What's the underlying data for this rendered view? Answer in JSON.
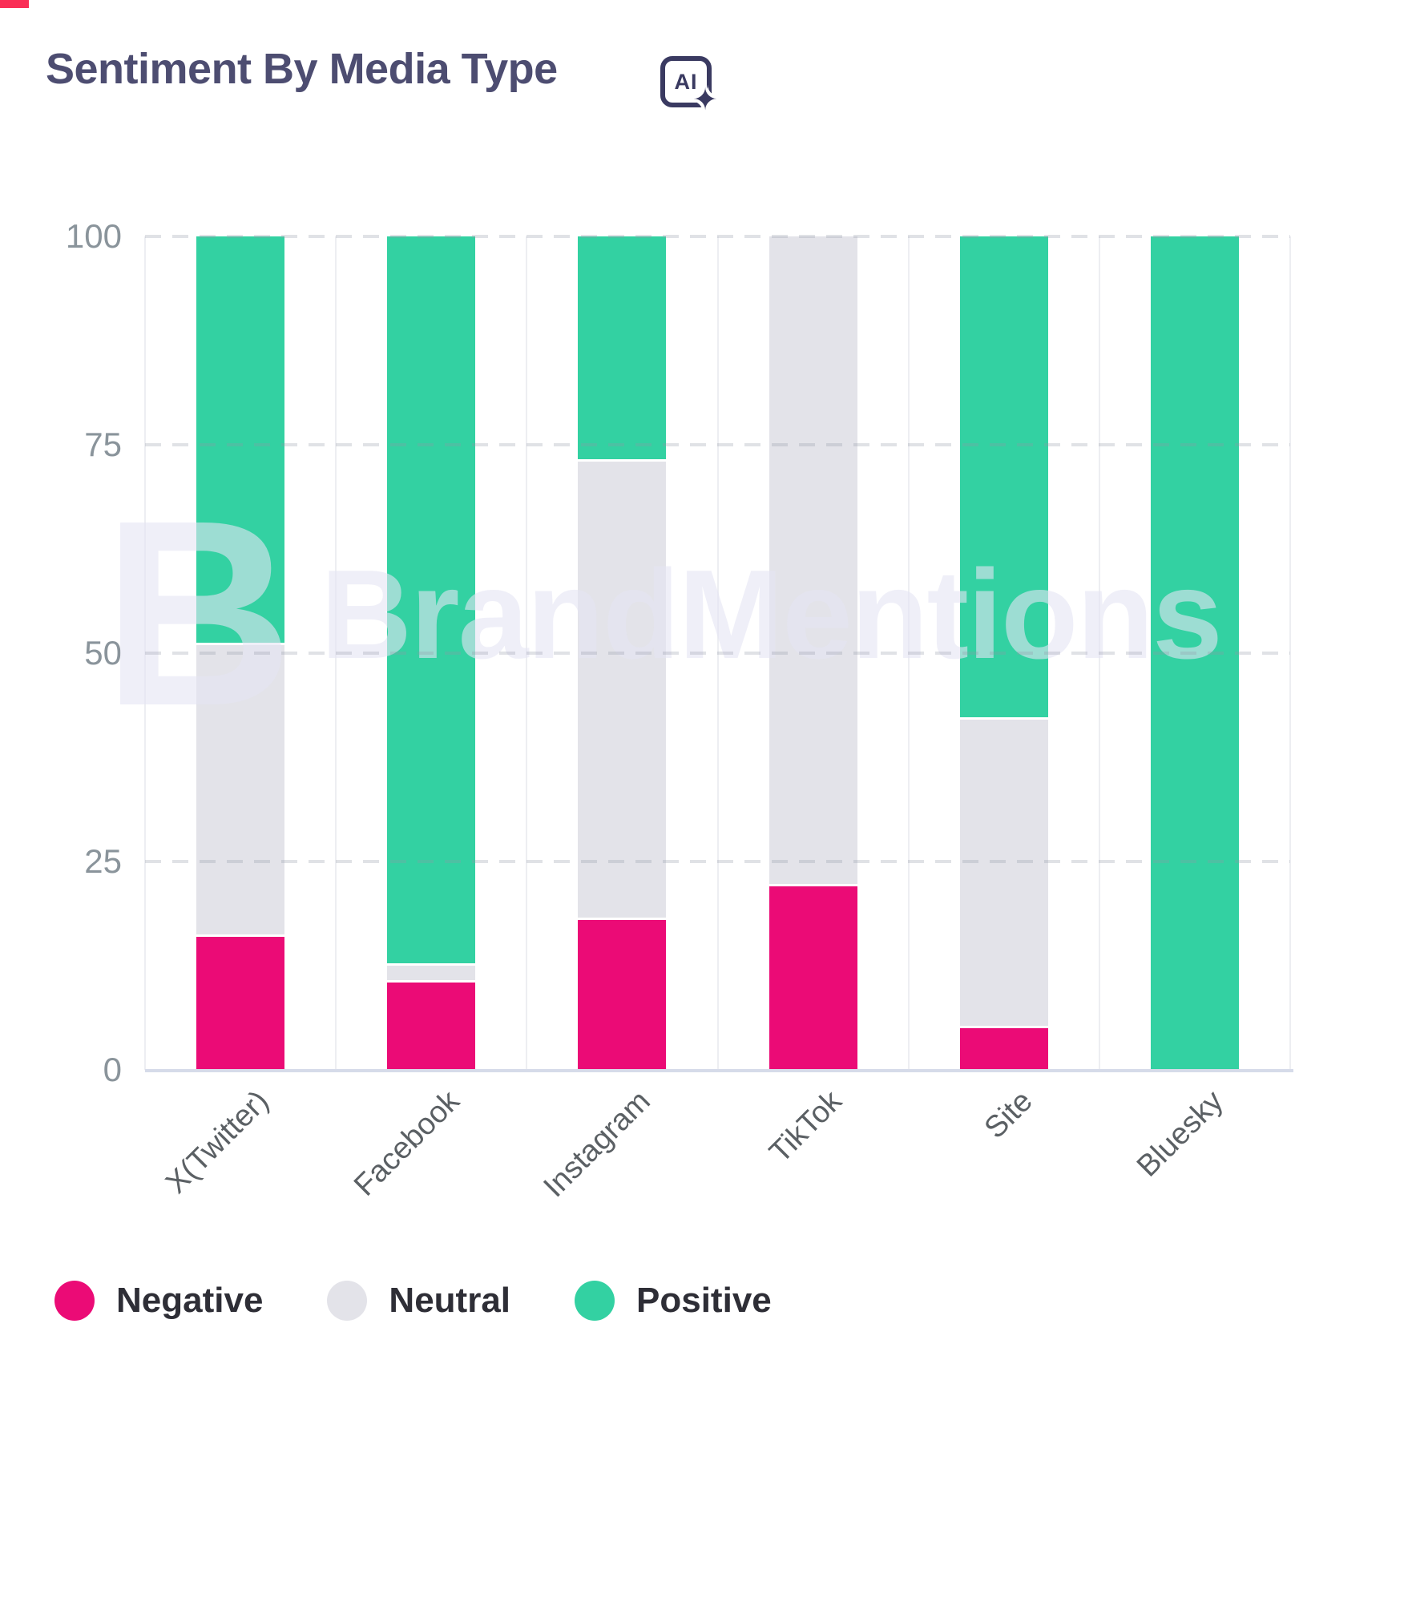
{
  "page": {
    "background": "#ffffff",
    "top_marker_color": "#fa2e56"
  },
  "header": {
    "title": "Sentiment By Media Type",
    "ai_icon_label": "AI",
    "ai_icon": "ai-sparkle-icon"
  },
  "chart_data": {
    "type": "bar",
    "subtype": "stacked-percentage-column",
    "title": "Sentiment By Media Type",
    "categories": [
      "X(Twitter)",
      "Facebook",
      "Instagram",
      "TikTok",
      "Site",
      "Bluesky"
    ],
    "series": [
      {
        "name": "Negative",
        "color": "#eb0b76",
        "values": [
          16,
          10.5,
          18,
          22,
          5,
          0
        ]
      },
      {
        "name": "Neutral",
        "color": "#e3e3e9",
        "values": [
          35,
          2,
          55,
          78,
          37,
          0
        ]
      },
      {
        "name": "Positive",
        "color": "#33d1a2",
        "values": [
          49,
          87.5,
          27,
          0,
          58,
          100
        ]
      }
    ],
    "xlabel": "",
    "ylabel": "",
    "ylim": [
      0,
      100
    ],
    "y_ticks": [
      0,
      25,
      50,
      75,
      100
    ],
    "grid": "dashed-horizontal",
    "legend_position": "bottom-left",
    "x_tick_rotation": -45,
    "watermark": "BrandMentions",
    "watermark_logo": "B",
    "colors": {
      "title_text": "#4d4d71",
      "y_tick_text": "#8a949b",
      "x_tick_text": "#5b6064",
      "legend_text": "#2e2e36",
      "axis_baseline": "#d6dbe9"
    }
  }
}
